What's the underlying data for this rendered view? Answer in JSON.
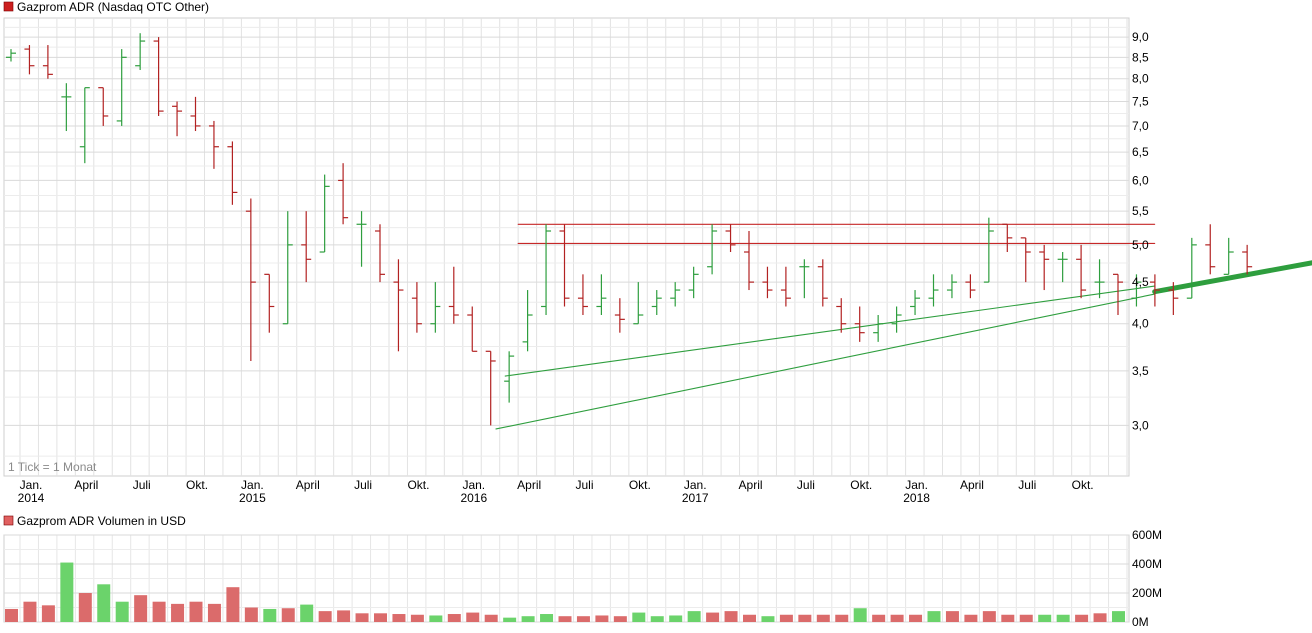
{
  "chart_data": [
    {
      "type": "ohlc",
      "title": "Gazprom ADR (Nasdaq OTC Other)",
      "note": "1 Tick = 1 Monat",
      "y_scale": "log",
      "ylim": [
        2.6,
        9.5
      ],
      "y_ticks": [
        "9,0",
        "8,5",
        "8,0",
        "7,5",
        "7,0",
        "6,5",
        "6,0",
        "5,5",
        "5,0",
        "4,5",
        "4,0",
        "3,5",
        "3,0"
      ],
      "x_ticks": [
        {
          "m": 0,
          "label": "Jan.",
          "year": "2014"
        },
        {
          "m": 3,
          "label": "April",
          "year": ""
        },
        {
          "m": 6,
          "label": "Juli",
          "year": ""
        },
        {
          "m": 9,
          "label": "Okt.",
          "year": ""
        },
        {
          "m": 12,
          "label": "Jan.",
          "year": "2015"
        },
        {
          "m": 15,
          "label": "April",
          "year": ""
        },
        {
          "m": 18,
          "label": "Juli",
          "year": ""
        },
        {
          "m": 21,
          "label": "Okt.",
          "year": ""
        },
        {
          "m": 24,
          "label": "Jan.",
          "year": "2016"
        },
        {
          "m": 27,
          "label": "April",
          "year": ""
        },
        {
          "m": 30,
          "label": "Juli",
          "year": ""
        },
        {
          "m": 33,
          "label": "Okt.",
          "year": ""
        },
        {
          "m": 36,
          "label": "Jan.",
          "year": "2017"
        },
        {
          "m": 39,
          "label": "April",
          "year": ""
        },
        {
          "m": 42,
          "label": "Juli",
          "year": ""
        },
        {
          "m": 45,
          "label": "Okt.",
          "year": ""
        },
        {
          "m": 48,
          "label": "Jan.",
          "year": "2018"
        },
        {
          "m": 51,
          "label": "April",
          "year": ""
        },
        {
          "m": 54,
          "label": "Juli",
          "year": ""
        },
        {
          "m": 57,
          "label": "Okt.",
          "year": ""
        }
      ],
      "ohlc": [
        [
          8.5,
          8.7,
          8.4,
          8.6
        ],
        [
          8.7,
          8.8,
          8.1,
          8.3
        ],
        [
          8.3,
          8.8,
          8.0,
          8.1
        ],
        [
          7.6,
          7.9,
          6.9,
          7.6
        ],
        [
          6.6,
          7.8,
          6.3,
          7.8
        ],
        [
          7.8,
          7.8,
          7.0,
          7.2
        ],
        [
          7.1,
          8.7,
          7.0,
          8.5
        ],
        [
          8.3,
          9.1,
          8.2,
          8.9
        ],
        [
          8.9,
          9.0,
          7.2,
          7.3
        ],
        [
          7.4,
          7.5,
          6.8,
          7.3
        ],
        [
          7.2,
          7.6,
          6.9,
          7.0
        ],
        [
          7.0,
          7.1,
          6.2,
          6.6
        ],
        [
          6.6,
          6.7,
          5.6,
          5.8
        ],
        [
          5.5,
          5.7,
          3.6,
          4.5
        ],
        [
          4.6,
          4.6,
          3.9,
          4.2
        ],
        [
          4.0,
          5.5,
          4.0,
          5.0
        ],
        [
          5.0,
          5.5,
          4.5,
          4.8
        ],
        [
          4.9,
          6.1,
          4.9,
          5.9
        ],
        [
          6.0,
          6.3,
          5.3,
          5.4
        ],
        [
          5.3,
          5.5,
          4.7,
          5.3
        ],
        [
          5.2,
          5.3,
          4.5,
          4.6
        ],
        [
          4.5,
          4.8,
          3.7,
          4.4
        ],
        [
          4.3,
          4.5,
          3.9,
          4.0
        ],
        [
          4.0,
          4.5,
          3.9,
          4.2
        ],
        [
          4.2,
          4.7,
          4.0,
          4.1
        ],
        [
          4.1,
          4.2,
          3.7,
          3.7
        ],
        [
          3.7,
          3.7,
          3.0,
          3.6
        ],
        [
          3.4,
          3.7,
          3.2,
          3.65
        ],
        [
          3.8,
          4.4,
          3.7,
          4.1
        ],
        [
          4.2,
          5.3,
          4.1,
          5.2
        ],
        [
          5.2,
          5.3,
          4.2,
          4.3
        ],
        [
          4.3,
          4.6,
          4.1,
          4.2
        ],
        [
          4.2,
          4.6,
          4.1,
          4.3
        ],
        [
          4.1,
          4.3,
          3.9,
          4.05
        ],
        [
          4.0,
          4.5,
          4.0,
          4.1
        ],
        [
          4.2,
          4.4,
          4.1,
          4.3
        ],
        [
          4.3,
          4.5,
          4.2,
          4.4
        ],
        [
          4.4,
          4.7,
          4.3,
          4.6
        ],
        [
          4.7,
          5.3,
          4.6,
          5.2
        ],
        [
          5.2,
          5.3,
          4.9,
          5.0
        ],
        [
          4.9,
          5.2,
          4.4,
          4.5
        ],
        [
          4.5,
          4.7,
          4.3,
          4.4
        ],
        [
          4.4,
          4.7,
          4.2,
          4.3
        ],
        [
          4.7,
          4.8,
          4.3,
          4.7
        ],
        [
          4.7,
          4.8,
          4.2,
          4.3
        ],
        [
          4.2,
          4.3,
          3.9,
          4.0
        ],
        [
          4.0,
          4.2,
          3.8,
          3.9
        ],
        [
          3.9,
          4.1,
          3.8,
          4.0
        ],
        [
          4.0,
          4.2,
          3.9,
          4.1
        ],
        [
          4.2,
          4.4,
          4.1,
          4.3
        ],
        [
          4.3,
          4.6,
          4.2,
          4.4
        ],
        [
          4.4,
          4.6,
          4.3,
          4.5
        ],
        [
          4.5,
          4.6,
          4.3,
          4.4
        ],
        [
          4.5,
          5.4,
          4.5,
          5.2
        ],
        [
          5.3,
          5.3,
          4.9,
          5.1
        ],
        [
          5.1,
          5.1,
          4.5,
          4.9
        ],
        [
          4.9,
          5.0,
          4.4,
          4.8
        ],
        [
          4.8,
          4.9,
          4.5,
          4.8
        ],
        [
          4.8,
          5.0,
          4.3,
          4.4
        ],
        [
          4.5,
          4.8,
          4.3,
          4.5
        ],
        [
          4.6,
          4.6,
          4.1,
          4.5
        ],
        [
          4.3,
          4.6,
          4.2,
          4.5
        ],
        [
          4.5,
          4.6,
          4.2,
          4.4
        ],
        [
          4.4,
          4.5,
          4.1,
          4.3
        ],
        [
          4.3,
          5.1,
          4.3,
          5.0
        ],
        [
          5.0,
          5.3,
          4.6,
          4.7
        ],
        [
          4.6,
          5.1,
          4.6,
          4.9
        ],
        [
          4.9,
          5.0,
          4.6,
          4.7
        ]
      ],
      "lines": [
        {
          "color": "#c62828",
          "points": [
            [
              27,
              5.3
            ],
            [
              61.5,
              5.3
            ]
          ]
        },
        {
          "color": "#c62828",
          "points": [
            [
              27,
              5.02
            ],
            [
              61.5,
              5.02
            ]
          ]
        },
        {
          "color": "#2e9e3e",
          "points": [
            [
              26.3,
              3.45
            ],
            [
              61.5,
              4.45
            ]
          ]
        },
        {
          "color": "#2e9e3e",
          "points": [
            [
              25.8,
              2.97
            ],
            [
              61.5,
              4.35
            ]
          ]
        },
        {
          "color": "#2e9e3e",
          "points": [
            [
              61.5,
              4.38
            ],
            [
              71.5,
              4.82
            ]
          ]
        }
      ]
    },
    {
      "type": "bar",
      "title": "Gazprom ADR Volumen in USD",
      "ylim": [
        0,
        600
      ],
      "y_ticks": [
        "600M",
        "400M",
        "200M",
        "0M"
      ],
      "values": [
        90,
        140,
        115,
        410,
        200,
        260,
        140,
        185,
        140,
        125,
        140,
        125,
        240,
        100,
        90,
        95,
        120,
        75,
        80,
        60,
        60,
        55,
        50,
        45,
        55,
        65,
        50,
        30,
        40,
        55,
        40,
        40,
        45,
        40,
        65,
        40,
        45,
        75,
        65,
        75,
        50,
        40,
        50,
        50,
        50,
        50,
        95,
        50,
        50,
        50,
        75,
        75,
        50,
        75,
        50,
        50,
        50,
        50,
        50,
        60,
        75,
        45,
        30
      ],
      "up": [
        0,
        0,
        0,
        1,
        0,
        1,
        1,
        0,
        0,
        0,
        0,
        0,
        0,
        0,
        1,
        0,
        1,
        0,
        0,
        0,
        0,
        0,
        0,
        1,
        0,
        0,
        0,
        1,
        1,
        1,
        0,
        0,
        0,
        0,
        1,
        1,
        1,
        1,
        0,
        0,
        0,
        1,
        0,
        0,
        0,
        0,
        1,
        0,
        0,
        0,
        1,
        0,
        0,
        0,
        0,
        0,
        1,
        1,
        0,
        0,
        1,
        0,
        0
      ]
    }
  ]
}
